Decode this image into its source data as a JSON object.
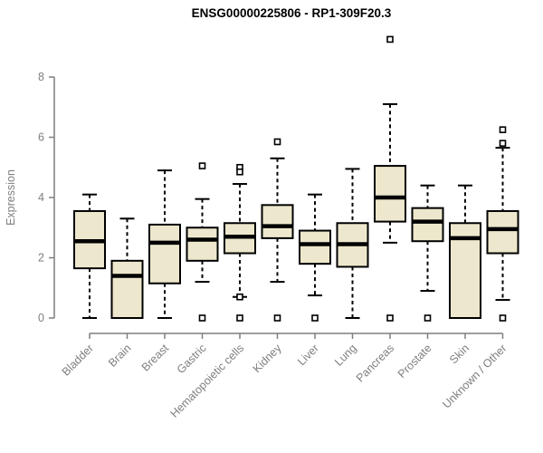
{
  "title": "ENSG00000225806 - RP1-309F20.3",
  "y_axis": {
    "label": "Expression"
  },
  "colors": {
    "box_fill": "#ede7cd",
    "box_border": "#000000",
    "median": "#000000",
    "whisker": "#000000",
    "outlier_fill": "#ffffff",
    "outlier_border": "#000000",
    "axis": "#7e7e7e",
    "tick_label": "#7e7e7e",
    "title": "#000000",
    "background": "#ffffff"
  },
  "chart_data": {
    "type": "boxplot",
    "title": "ENSG00000225806 - RP1-309F20.3",
    "xlabel": "",
    "ylabel": "Expression",
    "ylim": [
      0,
      9.6
    ],
    "yticks": [
      0,
      2,
      4,
      6,
      8
    ],
    "grid": false,
    "legend": "none",
    "categories": [
      "Bladder",
      "Brain",
      "Breast",
      "Gastric",
      "Hematopoietic cells",
      "Kidney",
      "Liver",
      "Lung",
      "Pancreas",
      "Prostate",
      "Skin",
      "Unknown / Other"
    ],
    "series": [
      {
        "name": "Bladder",
        "whisker_low": 0.0,
        "q1": 1.65,
        "median": 2.55,
        "q3": 3.55,
        "whisker_high": 4.1,
        "outliers": []
      },
      {
        "name": "Brain",
        "whisker_low": 0.0,
        "q1": 0.0,
        "median": 1.4,
        "q3": 1.9,
        "whisker_high": 3.3,
        "outliers": []
      },
      {
        "name": "Breast",
        "whisker_low": 0.0,
        "q1": 1.15,
        "median": 2.5,
        "q3": 3.1,
        "whisker_high": 4.9,
        "outliers": []
      },
      {
        "name": "Gastric",
        "whisker_low": 1.2,
        "q1": 1.9,
        "median": 2.6,
        "q3": 3.0,
        "whisker_high": 3.95,
        "outliers": [
          5.05,
          0.0
        ]
      },
      {
        "name": "Hematopoietic cells",
        "whisker_low": 0.7,
        "q1": 2.15,
        "median": 2.7,
        "q3": 3.15,
        "whisker_high": 4.45,
        "outliers": [
          5.0,
          4.85,
          0.7,
          0.0
        ]
      },
      {
        "name": "Kidney",
        "whisker_low": 1.2,
        "q1": 2.65,
        "median": 3.05,
        "q3": 3.75,
        "whisker_high": 5.3,
        "outliers": [
          5.85,
          0.0
        ]
      },
      {
        "name": "Liver",
        "whisker_low": 0.75,
        "q1": 1.8,
        "median": 2.45,
        "q3": 2.9,
        "whisker_high": 4.1,
        "outliers": [
          0.0
        ]
      },
      {
        "name": "Lung",
        "whisker_low": 0.0,
        "q1": 1.7,
        "median": 2.45,
        "q3": 3.15,
        "whisker_high": 4.95,
        "outliers": []
      },
      {
        "name": "Pancreas",
        "whisker_low": 2.5,
        "q1": 3.2,
        "median": 4.0,
        "q3": 5.05,
        "whisker_high": 7.1,
        "outliers": [
          9.25,
          0.0
        ]
      },
      {
        "name": "Prostate",
        "whisker_low": 0.9,
        "q1": 2.55,
        "median": 3.2,
        "q3": 3.65,
        "whisker_high": 4.4,
        "outliers": [
          0.0
        ]
      },
      {
        "name": "Skin",
        "whisker_low": 0.0,
        "q1": 0.0,
        "median": 2.65,
        "q3": 3.15,
        "whisker_high": 4.4,
        "outliers": []
      },
      {
        "name": "Unknown / Other",
        "whisker_low": 0.6,
        "q1": 2.15,
        "median": 2.95,
        "q3": 3.55,
        "whisker_high": 5.65,
        "outliers": [
          6.25,
          5.8,
          0.0
        ]
      }
    ]
  }
}
